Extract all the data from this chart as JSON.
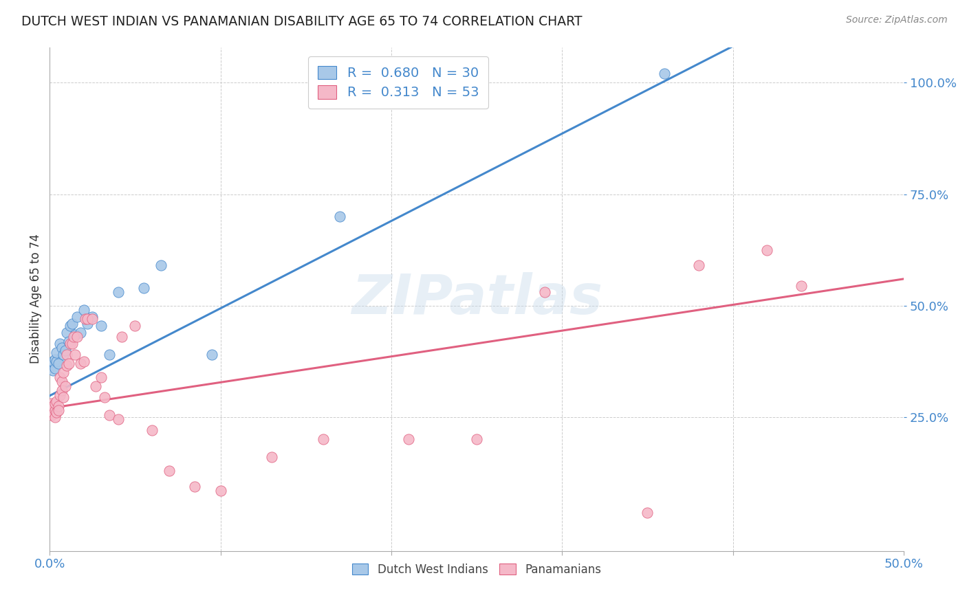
{
  "title": "DUTCH WEST INDIAN VS PANAMANIAN DISABILITY AGE 65 TO 74 CORRELATION CHART",
  "source": "Source: ZipAtlas.com",
  "ylabel": "Disability Age 65 to 74",
  "xlim": [
    0.0,
    0.5
  ],
  "ylim": [
    -0.05,
    1.08
  ],
  "yticks_right": [
    0.25,
    0.5,
    0.75,
    1.0
  ],
  "ytick_labels_right": [
    "25.0%",
    "50.0%",
    "75.0%",
    "100.0%"
  ],
  "blue_color": "#a8c8e8",
  "pink_color": "#f5b8c8",
  "blue_line_color": "#4488cc",
  "pink_line_color": "#e06080",
  "watermark": "ZIPatlas",
  "blue_R": 0.68,
  "blue_N": 30,
  "pink_R": 0.313,
  "pink_N": 53,
  "blue_x": [
    0.001,
    0.002,
    0.002,
    0.003,
    0.003,
    0.004,
    0.004,
    0.005,
    0.006,
    0.007,
    0.008,
    0.009,
    0.01,
    0.011,
    0.012,
    0.013,
    0.015,
    0.016,
    0.018,
    0.02,
    0.022,
    0.025,
    0.03,
    0.035,
    0.04,
    0.055,
    0.065,
    0.095,
    0.17,
    0.36
  ],
  "blue_y": [
    0.365,
    0.355,
    0.375,
    0.36,
    0.38,
    0.375,
    0.395,
    0.37,
    0.415,
    0.405,
    0.39,
    0.4,
    0.44,
    0.42,
    0.455,
    0.46,
    0.435,
    0.475,
    0.44,
    0.49,
    0.46,
    0.475,
    0.455,
    0.39,
    0.53,
    0.54,
    0.59,
    0.39,
    0.7,
    1.02
  ],
  "pink_x": [
    0.001,
    0.001,
    0.001,
    0.002,
    0.002,
    0.002,
    0.003,
    0.003,
    0.003,
    0.004,
    0.004,
    0.005,
    0.005,
    0.006,
    0.006,
    0.007,
    0.007,
    0.008,
    0.008,
    0.009,
    0.01,
    0.01,
    0.011,
    0.012,
    0.013,
    0.014,
    0.015,
    0.016,
    0.018,
    0.02,
    0.021,
    0.022,
    0.025,
    0.027,
    0.03,
    0.032,
    0.035,
    0.04,
    0.042,
    0.05,
    0.06,
    0.07,
    0.085,
    0.1,
    0.13,
    0.16,
    0.21,
    0.25,
    0.29,
    0.35,
    0.38,
    0.42,
    0.44
  ],
  "pink_y": [
    0.27,
    0.255,
    0.28,
    0.27,
    0.26,
    0.275,
    0.265,
    0.25,
    0.28,
    0.26,
    0.285,
    0.275,
    0.265,
    0.3,
    0.34,
    0.33,
    0.31,
    0.295,
    0.35,
    0.32,
    0.365,
    0.39,
    0.37,
    0.415,
    0.415,
    0.43,
    0.39,
    0.43,
    0.37,
    0.375,
    0.47,
    0.47,
    0.47,
    0.32,
    0.34,
    0.295,
    0.255,
    0.245,
    0.43,
    0.455,
    0.22,
    0.13,
    0.095,
    0.085,
    0.16,
    0.2,
    0.2,
    0.2,
    0.53,
    0.035,
    0.59,
    0.625,
    0.545
  ],
  "blue_line_intercept": 0.298,
  "blue_line_slope": 1.96,
  "pink_line_intercept": 0.27,
  "pink_line_slope": 0.58,
  "background_color": "#ffffff",
  "grid_color": "#cccccc"
}
